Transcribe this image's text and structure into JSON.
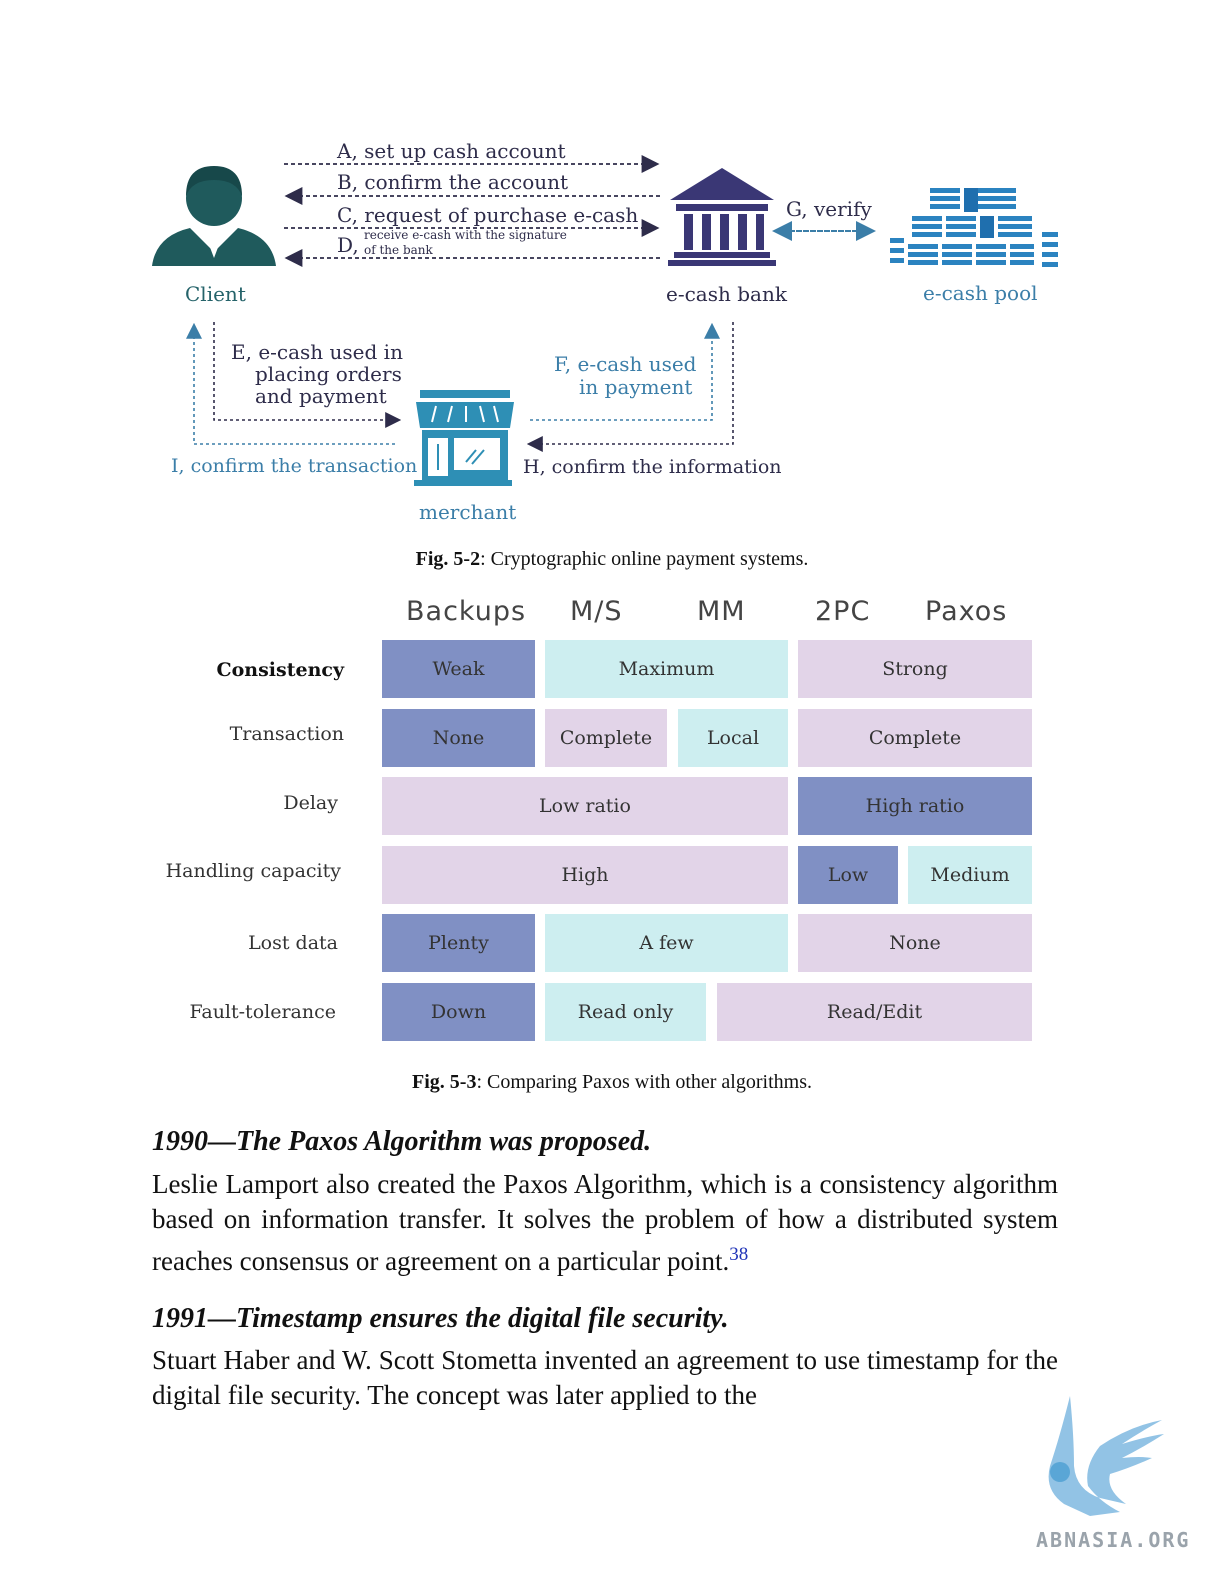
{
  "figure1": {
    "labels": {
      "a": "A, set up cash account",
      "b": "B, confirm the account",
      "c": "C, request of purchase e-cash",
      "d_letter": "D,",
      "d_line1": "receive e-cash with the signature",
      "d_line2": "of the bank",
      "g": "G, verify",
      "client": "Client",
      "bank": "e-cash bank",
      "pool": "e-cash pool",
      "e_line1": "E, e-cash used in",
      "e_line2": "placing orders",
      "e_line3": "and payment",
      "f_line1": "F, e-cash used",
      "f_line2": "in payment",
      "i": "I, confirm the transaction",
      "h": "H, confirm the information",
      "merchant": "merchant"
    },
    "caption_bold": "Fig. 5-2",
    "caption_text": ": Cryptographic online payment systems."
  },
  "figure2": {
    "columns": [
      "Backups",
      "M/S",
      "MM",
      "2PC",
      "Paxos"
    ],
    "rows": [
      "Consistency",
      "Transaction",
      "Delay",
      "Handling capacity",
      "Lost data",
      "Fault-tolerance"
    ],
    "cells": {
      "consistency": [
        "Weak",
        "Maximum",
        "Strong"
      ],
      "transaction": [
        "None",
        "Complete",
        "Local",
        "Complete"
      ],
      "delay": [
        "Low ratio",
        "High ratio"
      ],
      "handling": [
        "High",
        "Low",
        "Medium"
      ],
      "lost": [
        "Plenty",
        "A few",
        "None"
      ],
      "fault": [
        "Down",
        "Read only",
        "Read/Edit"
      ]
    },
    "colors": {
      "blue": "#8090c4",
      "teal": "#cdeef0",
      "lavender": "#e2d4e8"
    },
    "caption_bold": "Fig. 5-3",
    "caption_text": ": Comparing Paxos with other algorithms."
  },
  "sections": [
    {
      "heading": "1990—The Paxos Algorithm was proposed.",
      "body": "Leslie Lamport also created the Paxos Algorithm, which is a consistency algorithm based on information transfer. It solves the problem of how a distributed system reaches consensus or agreement on a particular point.",
      "footnote": "38"
    },
    {
      "heading": "1991—Timestamp ensures the digital file security.",
      "body": "Stuart Haber and W. Scott Stometta invented an agreement to use timestamp for the digital file security. The concept was later applied to the"
    }
  ],
  "watermark": {
    "text": "ABNASIA.ORG"
  }
}
